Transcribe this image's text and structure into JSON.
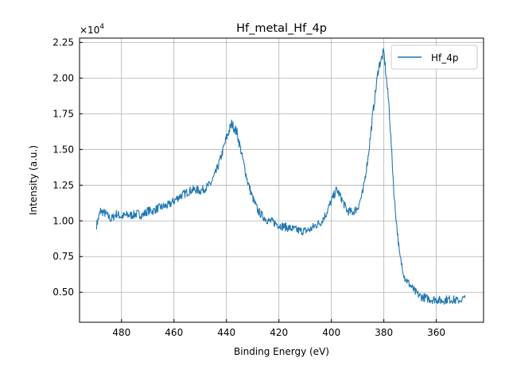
{
  "chart_data": {
    "type": "line",
    "title": "Hf_metal_Hf_4p",
    "xlabel": "Binding Energy (eV)",
    "ylabel": "Intensity (a.u.)",
    "y_offset_label": "×10",
    "y_offset_exponent": "4",
    "y_multiplier": 10000,
    "xlim": [
      496,
      342
    ],
    "ylim": [
      0.29,
      2.28
    ],
    "x_reversed": true,
    "grid": true,
    "legend_position": "top-right",
    "x_ticks": [
      480,
      460,
      440,
      420,
      400,
      380,
      360
    ],
    "x_tick_labels": [
      "480",
      "460",
      "440",
      "420",
      "400",
      "380",
      "360"
    ],
    "y_ticks": [
      0.5,
      0.75,
      1.0,
      1.25,
      1.5,
      1.75,
      2.0,
      2.25
    ],
    "y_tick_labels": [
      "0.50",
      "0.75",
      "1.00",
      "1.25",
      "1.50",
      "1.75",
      "2.00",
      "2.25"
    ],
    "series": [
      {
        "name": "Hf_4p",
        "color": "#1f77b4",
        "x": [
          489.5,
          488,
          486,
          484,
          482,
          480,
          478,
          476,
          474,
          472,
          470,
          468,
          466,
          464,
          462,
          460,
          458,
          456,
          454,
          452,
          450,
          448,
          446,
          444,
          442,
          440,
          438,
          436,
          434,
          432,
          430,
          428,
          426,
          424,
          422,
          420,
          418,
          416,
          414,
          412,
          410,
          408,
          406,
          404,
          402,
          400,
          398,
          396,
          394,
          392,
          390,
          388,
          386,
          384,
          382,
          380,
          378,
          376,
          374,
          372,
          370,
          368,
          366,
          364,
          362,
          360,
          358,
          356,
          354,
          352,
          349
        ],
        "y": [
          0.97,
          1.07,
          1.05,
          1.01,
          1.05,
          1.03,
          1.04,
          1.04,
          1.05,
          1.04,
          1.07,
          1.07,
          1.09,
          1.1,
          1.11,
          1.14,
          1.17,
          1.19,
          1.21,
          1.22,
          1.21,
          1.23,
          1.26,
          1.34,
          1.45,
          1.58,
          1.68,
          1.62,
          1.45,
          1.28,
          1.16,
          1.07,
          1.03,
          1.0,
          0.99,
          0.97,
          0.96,
          0.95,
          0.94,
          0.93,
          0.93,
          0.94,
          0.97,
          0.99,
          1.05,
          1.14,
          1.22,
          1.15,
          1.07,
          1.06,
          1.09,
          1.2,
          1.45,
          1.78,
          2.08,
          2.18,
          1.8,
          1.15,
          0.76,
          0.6,
          0.55,
          0.5,
          0.47,
          0.46,
          0.45,
          0.45,
          0.44,
          0.45,
          0.45,
          0.44,
          0.46
        ]
      }
    ]
  }
}
